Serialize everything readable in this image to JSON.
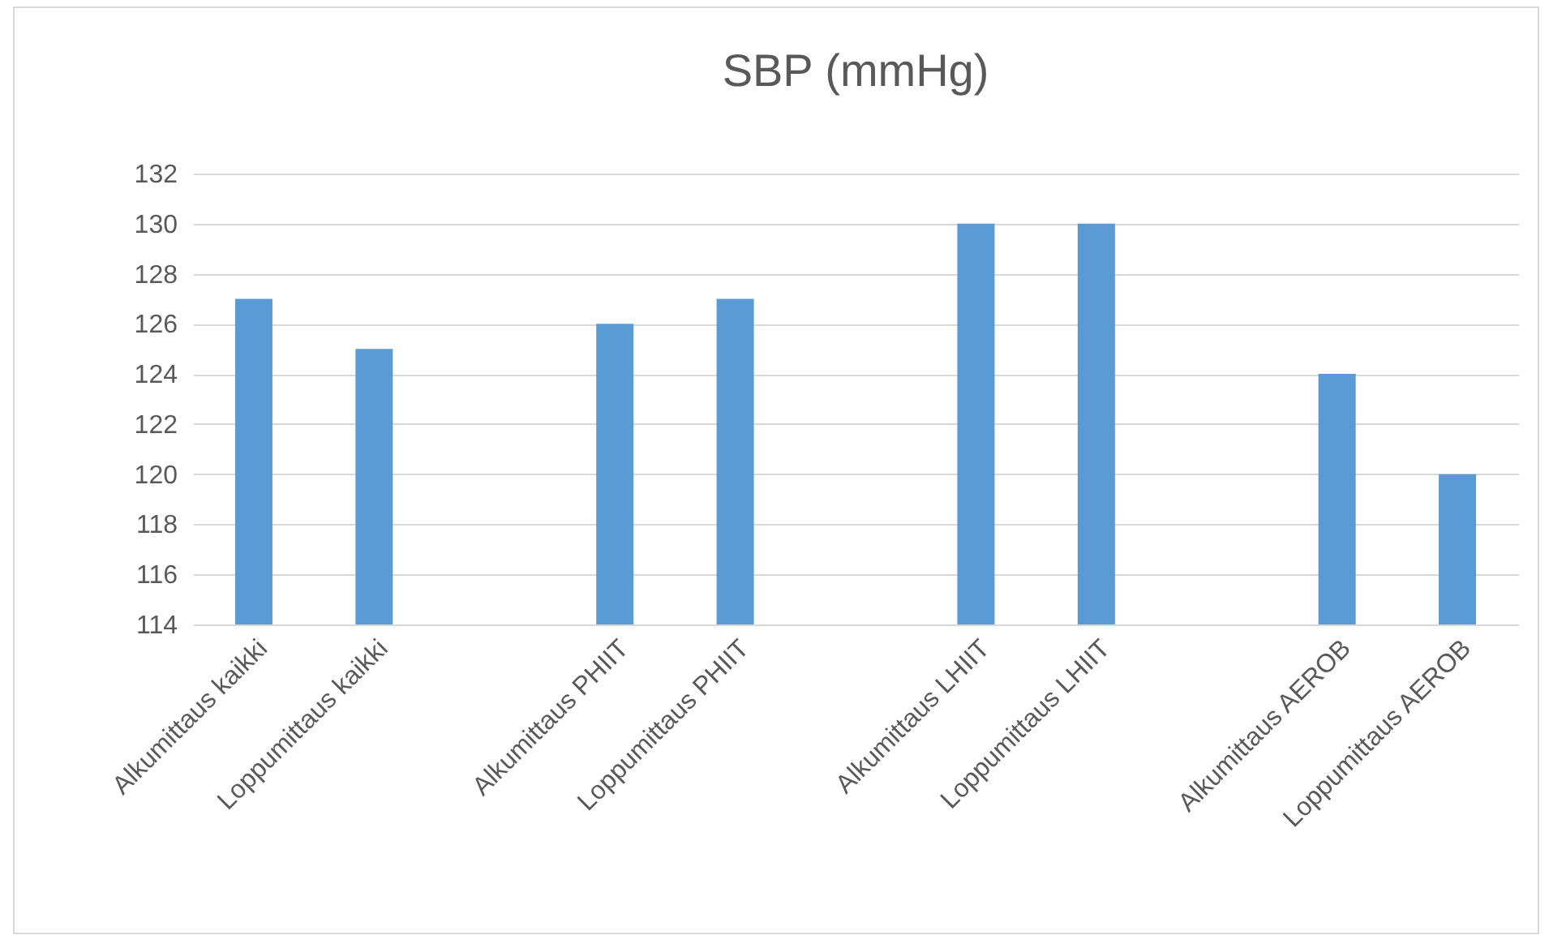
{
  "chart_data": {
    "type": "bar",
    "title": "SBP (mmHg)",
    "categories": [
      "Alkumittaus kaikki",
      "Loppumittaus kaikki",
      null,
      "Alkumittaus PHIIT",
      "Loppumittaus PHIIT",
      null,
      "Alkumittaus LHIIT",
      "Loppumittaus LHIIT",
      null,
      "Alkumittaus AEROB",
      "Loppumittaus AEROB"
    ],
    "values": [
      127,
      125,
      null,
      126,
      127,
      null,
      130,
      130,
      null,
      124,
      120
    ],
    "color": "#5b9bd5",
    "ylim": [
      114,
      132
    ],
    "yticks": [
      114,
      116,
      118,
      120,
      122,
      124,
      126,
      128,
      130,
      132
    ],
    "grid": true
  }
}
